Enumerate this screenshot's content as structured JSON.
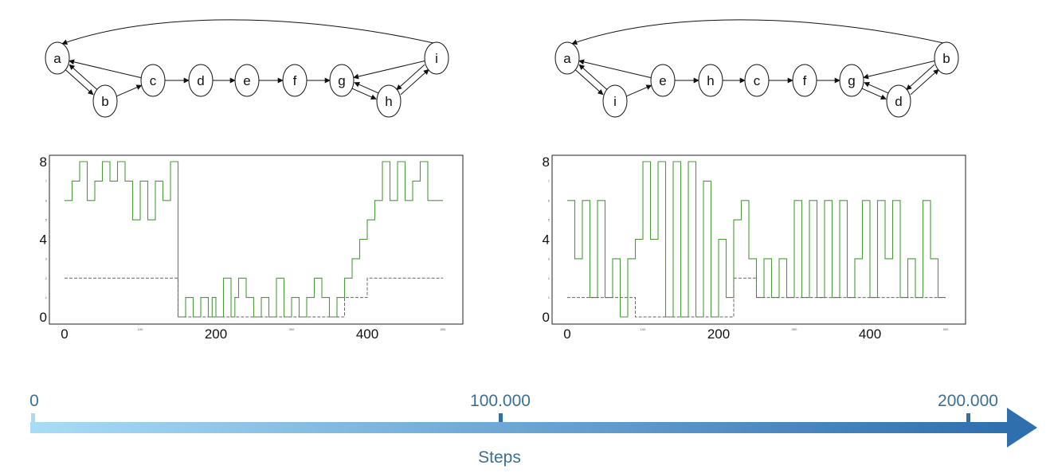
{
  "graphs": [
    {
      "nodes": [
        "a",
        "b",
        "c",
        "d",
        "e",
        "f",
        "g",
        "h",
        "i"
      ],
      "edges": [
        [
          "c",
          "a"
        ],
        [
          "a",
          "b"
        ],
        [
          "b",
          "a"
        ],
        [
          "b",
          "c"
        ],
        [
          "c",
          "d"
        ],
        [
          "d",
          "e"
        ],
        [
          "e",
          "f"
        ],
        [
          "f",
          "g"
        ],
        [
          "i",
          "g"
        ],
        [
          "g",
          "h"
        ],
        [
          "h",
          "g"
        ],
        [
          "h",
          "i"
        ],
        [
          "i",
          "h"
        ],
        [
          "i",
          "a"
        ]
      ]
    },
    {
      "nodes": [
        "a",
        "i",
        "e",
        "h",
        "c",
        "f",
        "g",
        "d",
        "b"
      ],
      "edges": [
        [
          "e",
          "a"
        ],
        [
          "a",
          "i"
        ],
        [
          "i",
          "a"
        ],
        [
          "i",
          "e"
        ],
        [
          "e",
          "h"
        ],
        [
          "h",
          "c"
        ],
        [
          "c",
          "f"
        ],
        [
          "f",
          "g"
        ],
        [
          "b",
          "g"
        ],
        [
          "g",
          "d"
        ],
        [
          "d",
          "g"
        ],
        [
          "d",
          "b"
        ],
        [
          "b",
          "d"
        ],
        [
          "b",
          "a"
        ]
      ]
    }
  ],
  "chart_data": [
    {
      "type": "line",
      "xlim": [
        0,
        500
      ],
      "ylim": [
        0,
        8
      ],
      "x_ticks_major": [
        {
          "v": 0,
          "label": "0"
        },
        {
          "v": 200,
          "label": "200"
        },
        {
          "v": 400,
          "label": "400"
        }
      ],
      "x_ticks_minor": [
        {
          "v": 100,
          "label": "100"
        },
        {
          "v": 300,
          "label": "300"
        },
        {
          "v": 500,
          "label": "500"
        }
      ],
      "y_ticks_major": [
        {
          "v": 0,
          "label": "0"
        },
        {
          "v": 4,
          "label": "4"
        },
        {
          "v": 8,
          "label": "8"
        }
      ],
      "y_ticks_minor": [
        {
          "v": 1,
          "label": "1"
        },
        {
          "v": 2,
          "label": "2"
        },
        {
          "v": 3,
          "label": "3"
        },
        {
          "v": 5,
          "label": "5"
        },
        {
          "v": 6,
          "label": "6"
        },
        {
          "v": 7,
          "label": "7"
        }
      ],
      "series": [
        {
          "style": "solid",
          "color": "#4a9a3a",
          "x": [
            0,
            10,
            10,
            20,
            20,
            30,
            30,
            40,
            40,
            50,
            50,
            60,
            60,
            70,
            70,
            80,
            80,
            90,
            90,
            100,
            100,
            110,
            110,
            120,
            120,
            130,
            130,
            140,
            140,
            150,
            150,
            160,
            160,
            170,
            170,
            180,
            180,
            190,
            190,
            195,
            195,
            200,
            200,
            210,
            210,
            220,
            220,
            225,
            225,
            230,
            230,
            240,
            240,
            250,
            250,
            260,
            260,
            270,
            270,
            280,
            280,
            290,
            290,
            300,
            300,
            310,
            310,
            320,
            320,
            330,
            330,
            340,
            340,
            350,
            350,
            360,
            360,
            370,
            370,
            380,
            380,
            390,
            390,
            400,
            400,
            410,
            410,
            420,
            420,
            430,
            430,
            440,
            440,
            450,
            450,
            460,
            460,
            470,
            470,
            480,
            480,
            490,
            490,
            500
          ],
          "y": [
            6,
            6,
            7,
            7,
            8,
            8,
            6,
            6,
            7,
            7,
            8,
            8,
            7,
            7,
            8,
            8,
            7,
            7,
            5,
            5,
            7,
            7,
            5,
            5,
            7,
            7,
            6,
            6,
            8,
            8,
            0,
            0,
            1,
            1,
            0,
            0,
            1,
            1,
            0,
            0,
            1,
            1,
            0,
            0,
            2,
            2,
            0,
            0,
            1,
            1,
            2,
            2,
            1,
            1,
            0,
            0,
            1,
            1,
            0,
            0,
            2,
            2,
            0,
            0,
            1,
            1,
            0,
            0,
            1,
            1,
            2,
            2,
            1,
            1,
            0,
            0,
            1,
            1,
            2,
            2,
            3,
            3,
            4,
            4,
            5,
            5,
            6,
            6,
            8,
            8,
            6,
            6,
            8,
            8,
            6,
            6,
            7,
            7,
            8,
            8,
            6,
            6,
            6,
            6
          ]
        },
        {
          "style": "dashed",
          "color": "#666666",
          "x": [
            0,
            150,
            150,
            160,
            160,
            370,
            370,
            400,
            400,
            500
          ],
          "y": [
            2,
            2,
            0,
            0,
            0,
            0,
            1,
            1,
            2,
            2
          ]
        }
      ]
    },
    {
      "type": "line",
      "xlim": [
        0,
        500
      ],
      "ylim": [
        0,
        8
      ],
      "x_ticks_major": [
        {
          "v": 0,
          "label": "0"
        },
        {
          "v": 200,
          "label": "200"
        },
        {
          "v": 400,
          "label": "400"
        }
      ],
      "x_ticks_minor": [
        {
          "v": 100,
          "label": "100"
        },
        {
          "v": 300,
          "label": "300"
        },
        {
          "v": 500,
          "label": "500"
        }
      ],
      "y_ticks_major": [
        {
          "v": 0,
          "label": "0"
        },
        {
          "v": 4,
          "label": "4"
        },
        {
          "v": 8,
          "label": "8"
        }
      ],
      "y_ticks_minor": [
        {
          "v": 1,
          "label": "1"
        },
        {
          "v": 2,
          "label": "2"
        },
        {
          "v": 3,
          "label": "3"
        },
        {
          "v": 5,
          "label": "5"
        },
        {
          "v": 6,
          "label": "6"
        },
        {
          "v": 7,
          "label": "7"
        }
      ],
      "series": [
        {
          "style": "solid",
          "color": "#4a9a3a",
          "x": [
            0,
            10,
            10,
            20,
            20,
            30,
            30,
            40,
            40,
            50,
            50,
            60,
            60,
            70,
            70,
            80,
            80,
            90,
            90,
            100,
            100,
            110,
            110,
            120,
            120,
            130,
            130,
            140,
            140,
            150,
            150,
            160,
            160,
            170,
            170,
            180,
            180,
            190,
            190,
            200,
            200,
            210,
            210,
            220,
            220,
            230,
            230,
            240,
            240,
            250,
            250,
            260,
            260,
            270,
            270,
            280,
            280,
            290,
            290,
            300,
            300,
            310,
            310,
            320,
            320,
            330,
            330,
            340,
            340,
            350,
            350,
            360,
            360,
            370,
            370,
            380,
            380,
            390,
            390,
            400,
            400,
            410,
            410,
            420,
            420,
            430,
            430,
            440,
            440,
            450,
            450,
            460,
            460,
            470,
            470,
            480,
            480,
            490,
            490,
            500
          ],
          "y": [
            6,
            6,
            3,
            3,
            6,
            6,
            1,
            1,
            6,
            6,
            1,
            1,
            3,
            3,
            0,
            0,
            3,
            3,
            4,
            4,
            8,
            8,
            4,
            4,
            8,
            8,
            0,
            0,
            8,
            8,
            0,
            0,
            8,
            8,
            0,
            0,
            7,
            7,
            0,
            0,
            4,
            4,
            1,
            1,
            5,
            5,
            6,
            6,
            3,
            3,
            1,
            1,
            3,
            3,
            1,
            1,
            3,
            3,
            1,
            1,
            6,
            6,
            1,
            1,
            6,
            6,
            1,
            1,
            6,
            6,
            1,
            1,
            6,
            6,
            1,
            1,
            3,
            3,
            6,
            6,
            1,
            1,
            6,
            6,
            3,
            3,
            6,
            6,
            1,
            1,
            3,
            3,
            1,
            1,
            6,
            6,
            3,
            3,
            1,
            1
          ]
        },
        {
          "style": "dashed",
          "color": "#666666",
          "x": [
            0,
            90,
            90,
            220,
            220,
            250,
            250,
            500
          ],
          "y": [
            1,
            1,
            0,
            0,
            2,
            2,
            1,
            1
          ]
        }
      ]
    }
  ],
  "timeline": {
    "label": "Steps",
    "ticks": [
      {
        "value": 0,
        "label": "0"
      },
      {
        "value": 100000,
        "label": "100.000"
      },
      {
        "value": 200000,
        "label": "200.000"
      }
    ],
    "colors": [
      "#a8dcf6",
      "#2f6fae"
    ]
  }
}
